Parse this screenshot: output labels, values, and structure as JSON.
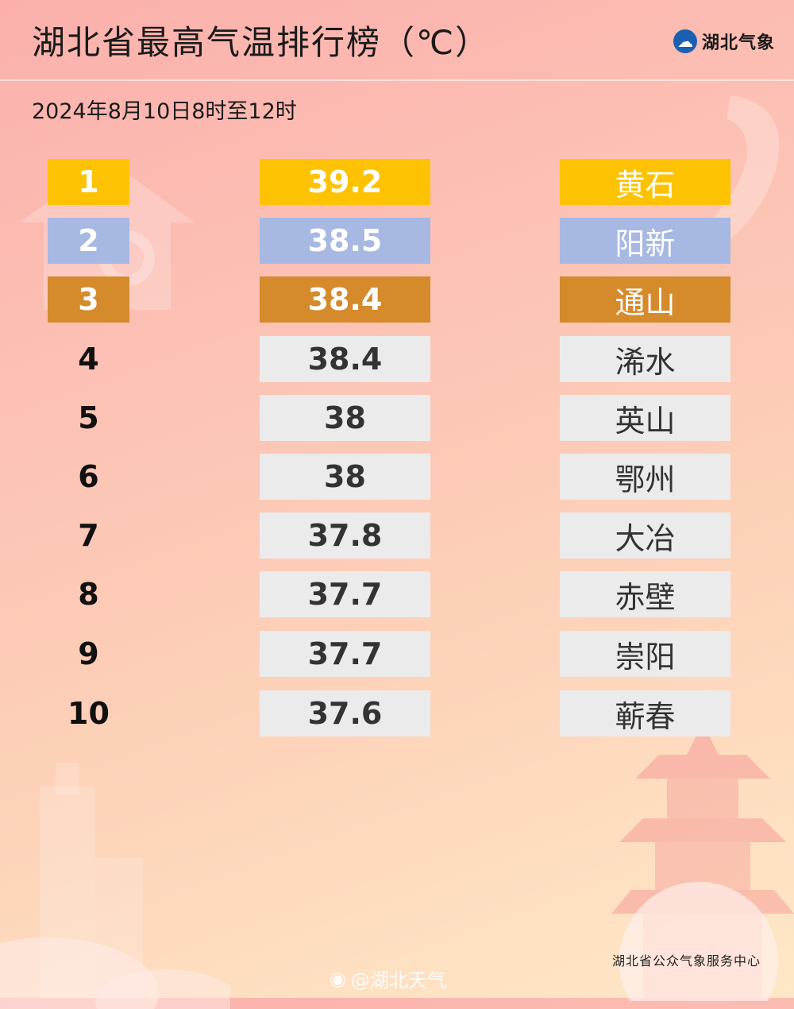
{
  "header": {
    "title": "湖北省最高气温排行榜（℃）",
    "brand_name": "湖北气象",
    "subtitle": "2024年8月10日8时至12时"
  },
  "ranking": [
    {
      "rank": "1",
      "temp": "39.2",
      "city": "黄石"
    },
    {
      "rank": "2",
      "temp": "38.5",
      "city": "阳新"
    },
    {
      "rank": "3",
      "temp": "38.4",
      "city": "通山"
    },
    {
      "rank": "4",
      "temp": "38.4",
      "city": "浠水"
    },
    {
      "rank": "5",
      "temp": "38",
      "city": "英山"
    },
    {
      "rank": "6",
      "temp": "38",
      "city": "鄂州"
    },
    {
      "rank": "7",
      "temp": "37.8",
      "city": "大冶"
    },
    {
      "rank": "8",
      "temp": "37.7",
      "city": "赤壁"
    },
    {
      "rank": "9",
      "temp": "37.7",
      "city": "崇阳"
    },
    {
      "rank": "10",
      "temp": "37.6",
      "city": "蕲春"
    }
  ],
  "footer": {
    "org": "湖北省公众气象服务中心",
    "weibo": "@湖北天气"
  },
  "colors": {
    "gold": "#fdc302",
    "silver": "#a7b8e3",
    "bronze": "#d58a2c",
    "default_cell": "#ebebeb",
    "brand_blue": "#1b5fb0"
  },
  "icons": {
    "brand": "weather-logo-icon",
    "weibo": "weibo-icon"
  }
}
